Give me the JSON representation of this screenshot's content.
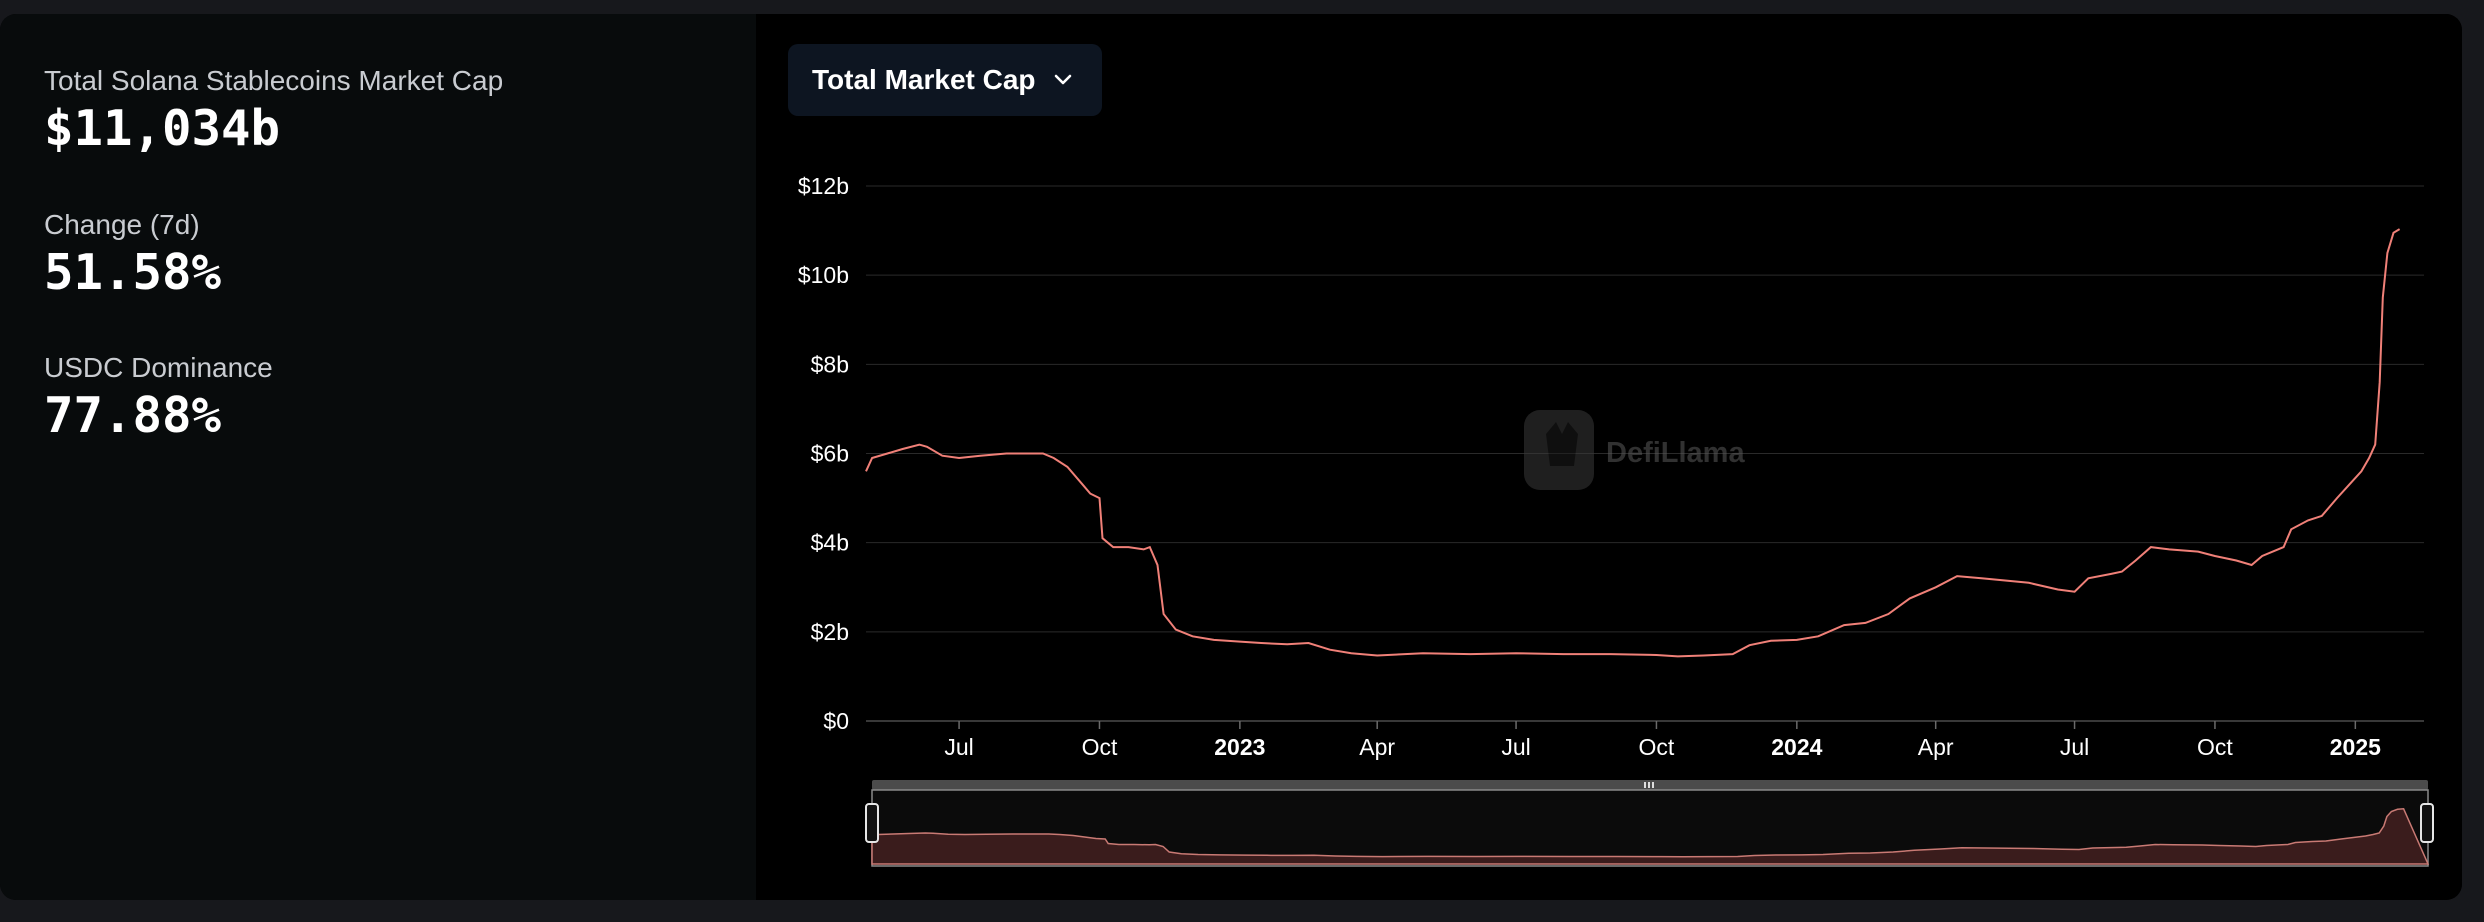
{
  "stats": [
    {
      "label": "Total Solana Stablecoins Market Cap",
      "value": "$11,034b"
    },
    {
      "label": "Change (7d)",
      "value": "51.58%"
    },
    {
      "label": "USDC Dominance",
      "value": "77.88%"
    }
  ],
  "controls": {
    "metric_label": "Total Market Cap"
  },
  "watermark": {
    "text": "DefiLlama"
  },
  "colors": {
    "line": "#f08078",
    "brush_fill": "#3a1c1c",
    "brush_line": "#c97a74",
    "grid": "#2a2a2a",
    "axis_text": "#ffffff"
  },
  "chart_data": {
    "type": "line",
    "title": "",
    "xlabel": "",
    "ylabel": "",
    "ylim": [
      0,
      12000000000
    ],
    "yticks": [
      {
        "value": 0,
        "label": "$0"
      },
      {
        "value": 2000000000,
        "label": "$2b"
      },
      {
        "value": 4000000000,
        "label": "$4b"
      },
      {
        "value": 6000000000,
        "label": "$6b"
      },
      {
        "value": 8000000000,
        "label": "$8b"
      },
      {
        "value": 10000000000,
        "label": "$10b"
      },
      {
        "value": 12000000000,
        "label": "$12b"
      }
    ],
    "xlim": [
      "2022-05-01",
      "2025-02-15"
    ],
    "xticks": [
      {
        "date": "2022-07-01",
        "label": "Jul",
        "bold": false
      },
      {
        "date": "2022-10-01",
        "label": "Oct",
        "bold": false
      },
      {
        "date": "2023-01-01",
        "label": "2023",
        "bold": true
      },
      {
        "date": "2023-04-01",
        "label": "Apr",
        "bold": false
      },
      {
        "date": "2023-07-01",
        "label": "Jul",
        "bold": false
      },
      {
        "date": "2023-10-01",
        "label": "Oct",
        "bold": false
      },
      {
        "date": "2024-01-01",
        "label": "2024",
        "bold": true
      },
      {
        "date": "2024-04-01",
        "label": "Apr",
        "bold": false
      },
      {
        "date": "2024-07-01",
        "label": "Jul",
        "bold": false
      },
      {
        "date": "2024-10-01",
        "label": "Oct",
        "bold": false
      },
      {
        "date": "2025-01-01",
        "label": "2025",
        "bold": true
      }
    ],
    "series": [
      {
        "points": [
          [
            "2022-05-01",
            5.6
          ],
          [
            "2022-05-05",
            5.9
          ],
          [
            "2022-05-15",
            6.0
          ],
          [
            "2022-05-25",
            6.1
          ],
          [
            "2022-06-05",
            6.2
          ],
          [
            "2022-06-10",
            6.15
          ],
          [
            "2022-06-20",
            5.95
          ],
          [
            "2022-07-01",
            5.9
          ],
          [
            "2022-07-15",
            5.95
          ],
          [
            "2022-08-01",
            6.0
          ],
          [
            "2022-08-15",
            6.0
          ],
          [
            "2022-08-25",
            6.0
          ],
          [
            "2022-09-01",
            5.9
          ],
          [
            "2022-09-10",
            5.7
          ],
          [
            "2022-09-20",
            5.3
          ],
          [
            "2022-09-25",
            5.1
          ],
          [
            "2022-10-01",
            5.0
          ],
          [
            "2022-10-03",
            4.1
          ],
          [
            "2022-10-10",
            3.9
          ],
          [
            "2022-10-20",
            3.9
          ],
          [
            "2022-10-30",
            3.85
          ],
          [
            "2022-11-03",
            3.9
          ],
          [
            "2022-11-08",
            3.5
          ],
          [
            "2022-11-12",
            2.4
          ],
          [
            "2022-11-20",
            2.05
          ],
          [
            "2022-12-01",
            1.9
          ],
          [
            "2022-12-15",
            1.82
          ],
          [
            "2023-01-01",
            1.78
          ],
          [
            "2023-01-15",
            1.75
          ],
          [
            "2023-02-01",
            1.72
          ],
          [
            "2023-02-15",
            1.75
          ],
          [
            "2023-03-01",
            1.6
          ],
          [
            "2023-03-15",
            1.52
          ],
          [
            "2023-04-01",
            1.47
          ],
          [
            "2023-05-01",
            1.52
          ],
          [
            "2023-06-01",
            1.5
          ],
          [
            "2023-07-01",
            1.52
          ],
          [
            "2023-08-01",
            1.5
          ],
          [
            "2023-09-01",
            1.5
          ],
          [
            "2023-10-01",
            1.48
          ],
          [
            "2023-10-15",
            1.45
          ],
          [
            "2023-11-01",
            1.47
          ],
          [
            "2023-11-20",
            1.5
          ],
          [
            "2023-12-01",
            1.7
          ],
          [
            "2023-12-15",
            1.8
          ],
          [
            "2024-01-01",
            1.82
          ],
          [
            "2024-01-15",
            1.9
          ],
          [
            "2024-02-01",
            2.15
          ],
          [
            "2024-02-15",
            2.2
          ],
          [
            "2024-03-01",
            2.4
          ],
          [
            "2024-03-15",
            2.75
          ],
          [
            "2024-04-01",
            3.0
          ],
          [
            "2024-04-15",
            3.25
          ],
          [
            "2024-05-01",
            3.2
          ],
          [
            "2024-06-01",
            3.1
          ],
          [
            "2024-06-20",
            2.95
          ],
          [
            "2024-07-01",
            2.9
          ],
          [
            "2024-07-10",
            3.2
          ],
          [
            "2024-07-25",
            3.3
          ],
          [
            "2024-08-01",
            3.35
          ],
          [
            "2024-08-10",
            3.6
          ],
          [
            "2024-08-20",
            3.9
          ],
          [
            "2024-09-01",
            3.85
          ],
          [
            "2024-09-20",
            3.8
          ],
          [
            "2024-10-01",
            3.7
          ],
          [
            "2024-10-15",
            3.6
          ],
          [
            "2024-10-25",
            3.5
          ],
          [
            "2024-11-01",
            3.7
          ],
          [
            "2024-11-15",
            3.9
          ],
          [
            "2024-11-20",
            4.3
          ],
          [
            "2024-12-01",
            4.5
          ],
          [
            "2024-12-10",
            4.6
          ],
          [
            "2024-12-20",
            5.0
          ],
          [
            "2024-12-28",
            5.3
          ],
          [
            "2025-01-05",
            5.6
          ],
          [
            "2025-01-10",
            5.9
          ],
          [
            "2025-01-14",
            6.2
          ],
          [
            "2025-01-17",
            7.6
          ],
          [
            "2025-01-19",
            9.5
          ],
          [
            "2025-01-22",
            10.5
          ],
          [
            "2025-01-26",
            10.95
          ],
          [
            "2025-01-30",
            11.034
          ]
        ]
      }
    ]
  }
}
